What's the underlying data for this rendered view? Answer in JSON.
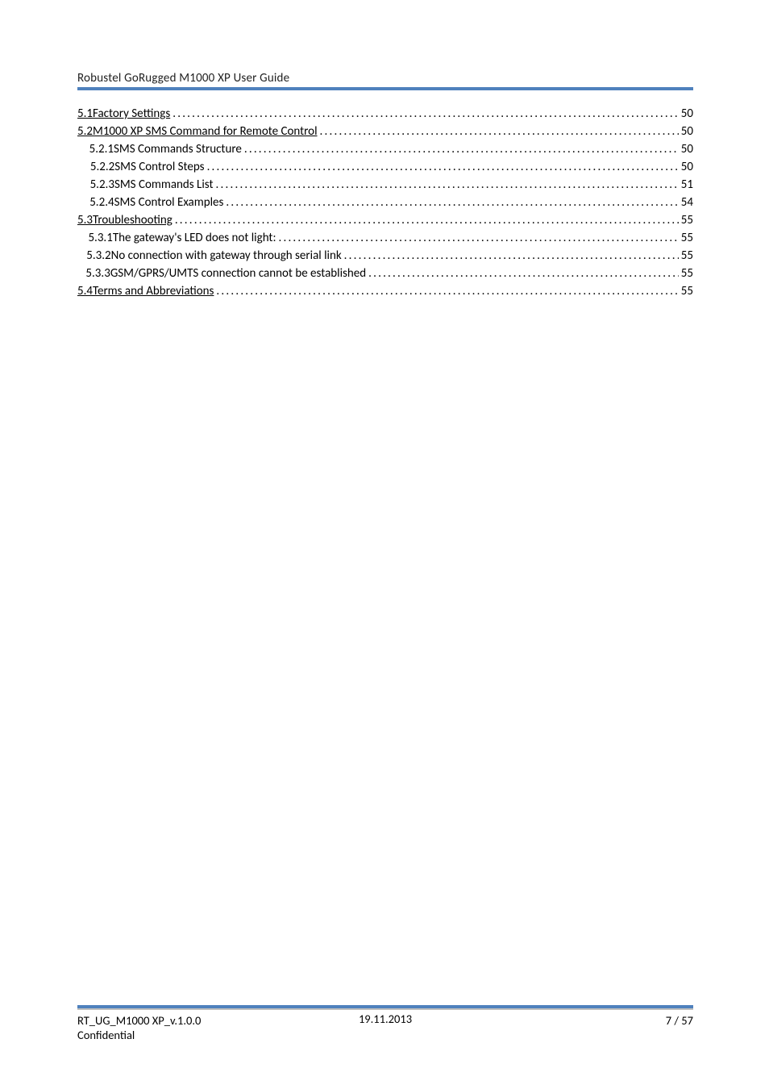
{
  "header": {
    "title": "Robustel GoRugged M1000 XP User Guide"
  },
  "toc": [
    {
      "level": 1,
      "num": "5.1",
      "title": "Factory Settings",
      "page": "50",
      "underline": true
    },
    {
      "level": 1,
      "num": "5.2",
      "title": "M1000 XP SMS Command for Remote Control",
      "page": "50",
      "underline": true
    },
    {
      "level": 2,
      "num": "5.2.1",
      "title": "SMS Commands Structure",
      "page": "50",
      "underline": false
    },
    {
      "level": 2,
      "num": "5.2.2",
      "title": "SMS Control Steps",
      "page": "50",
      "underline": false
    },
    {
      "level": 2,
      "num": "5.2.3",
      "title": "SMS Commands List",
      "page": "51",
      "underline": false
    },
    {
      "level": 2,
      "num": "5.2.4",
      "title": "SMS Control Examples",
      "page": "54",
      "underline": false
    },
    {
      "level": 1,
      "num": "5.3",
      "title": "Troubleshooting",
      "page": "55",
      "underline": true
    },
    {
      "level": 2,
      "num": "5.3.1",
      "title": "The gateway's LED does not light:",
      "page": "55",
      "underline": false
    },
    {
      "level": 2,
      "num": "5.3.2",
      "title": "No connection with gateway through serial link",
      "page": "55",
      "underline": false
    },
    {
      "level": 2,
      "num": "5.3.3",
      "title": "GSM/GPRS/UMTS connection cannot be established",
      "page": "55",
      "underline": false
    },
    {
      "level": 1,
      "num": "5.4",
      "title": "Terms and Abbreviations",
      "page": "55",
      "underline": true
    }
  ],
  "footer": {
    "left_line1": "RT_UG_M1000 XP_v.1.0.0",
    "left_line2": "Confidential",
    "center": "19.11.2013",
    "right": "7 / 57"
  },
  "dots": "..................................................................................................................................................................................................................................................................."
}
